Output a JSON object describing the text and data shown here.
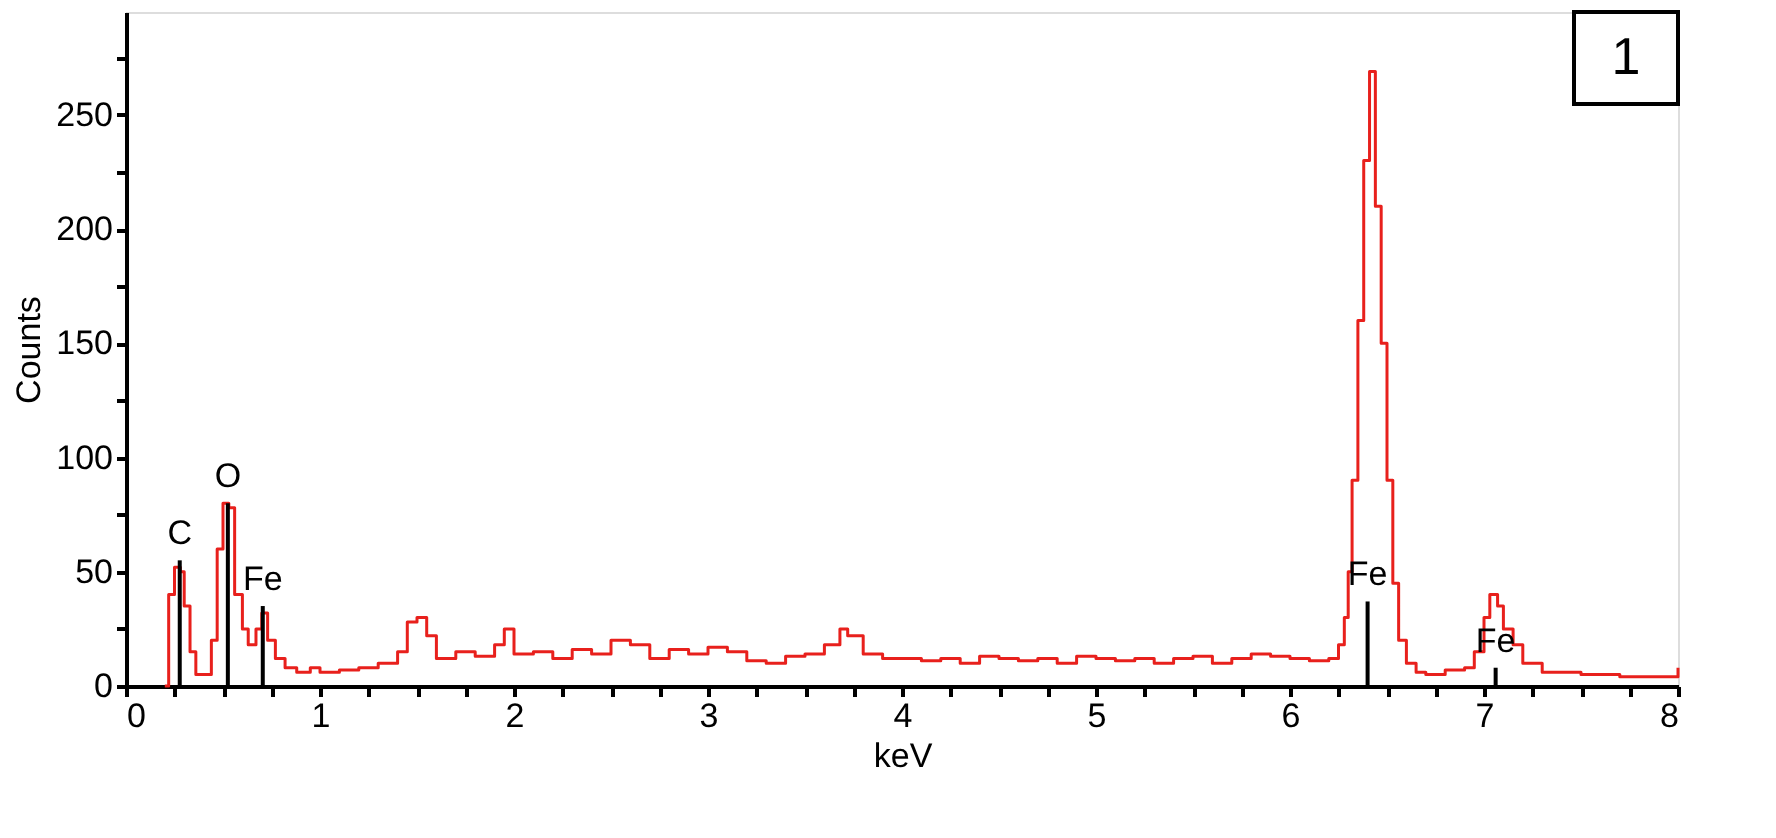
{
  "chart_data": {
    "type": "step",
    "xlabel": "keV",
    "ylabel": "Counts",
    "xlim": [
      0,
      8
    ],
    "xticks": [
      0,
      {
        "value": 0.25,
        "label": null
      },
      {
        "value": 0.5,
        "label": null
      },
      {
        "value": 0.75,
        "label": null
      },
      1,
      {
        "value": 1.25,
        "label": null
      },
      {
        "value": 1.5,
        "label": null
      },
      {
        "value": 1.75,
        "label": null
      },
      2,
      {
        "value": 2.25,
        "label": null
      },
      {
        "value": 2.5,
        "label": null
      },
      {
        "value": 2.75,
        "label": null
      },
      3,
      {
        "value": 3.25,
        "label": null
      },
      {
        "value": 3.5,
        "label": null
      },
      {
        "value": 3.75,
        "label": null
      },
      4,
      {
        "value": 4.25,
        "label": null
      },
      {
        "value": 4.5,
        "label": null
      },
      {
        "value": 4.75,
        "label": null
      },
      5,
      {
        "value": 5.25,
        "label": null
      },
      {
        "value": 5.5,
        "label": null
      },
      {
        "value": 5.75,
        "label": null
      },
      6,
      {
        "value": 6.25,
        "label": null
      },
      {
        "value": 6.5,
        "label": null
      },
      {
        "value": 6.75,
        "label": null
      },
      7,
      {
        "value": 7.25,
        "label": null
      },
      {
        "value": 7.5,
        "label": null
      },
      {
        "value": 7.75,
        "label": null
      },
      8
    ],
    "ylim": [
      0,
      295
    ],
    "yticks": [
      0,
      {
        "value": 25,
        "label": null
      },
      50,
      {
        "value": 75,
        "label": null
      },
      100,
      {
        "value": 125,
        "label": null
      },
      150,
      {
        "value": 175,
        "label": null
      },
      200,
      {
        "value": 225,
        "label": null
      },
      250,
      {
        "value": 275,
        "label": null
      }
    ],
    "grid": false,
    "series": [
      {
        "color": "#e8201c",
        "x": [
          0.2,
          0.22,
          0.25,
          0.28,
          0.3,
          0.33,
          0.36,
          0.4,
          0.44,
          0.47,
          0.5,
          0.53,
          0.56,
          0.6,
          0.63,
          0.67,
          0.7,
          0.73,
          0.77,
          0.82,
          0.88,
          0.95,
          1.0,
          1.1,
          1.2,
          1.3,
          1.4,
          1.45,
          1.5,
          1.55,
          1.6,
          1.7,
          1.8,
          1.9,
          1.95,
          2.0,
          2.1,
          2.2,
          2.3,
          2.4,
          2.5,
          2.6,
          2.7,
          2.8,
          2.9,
          3.0,
          3.1,
          3.2,
          3.3,
          3.4,
          3.5,
          3.6,
          3.68,
          3.72,
          3.8,
          3.9,
          4.0,
          4.1,
          4.2,
          4.3,
          4.4,
          4.5,
          4.6,
          4.7,
          4.8,
          4.9,
          5.0,
          5.1,
          5.2,
          5.3,
          5.4,
          5.5,
          5.6,
          5.7,
          5.8,
          5.9,
          6.0,
          6.1,
          6.2,
          6.25,
          6.28,
          6.3,
          6.32,
          6.35,
          6.38,
          6.41,
          6.44,
          6.47,
          6.5,
          6.53,
          6.56,
          6.6,
          6.65,
          6.7,
          6.8,
          6.9,
          6.95,
          7.0,
          7.03,
          7.07,
          7.1,
          7.15,
          7.2,
          7.3,
          7.5,
          7.7,
          7.9,
          8.0
        ],
        "values": [
          0,
          40,
          52,
          50,
          35,
          15,
          5,
          5,
          20,
          60,
          80,
          78,
          40,
          25,
          18,
          25,
          32,
          20,
          12,
          8,
          6,
          8,
          6,
          7,
          8,
          10,
          15,
          28,
          30,
          22,
          12,
          15,
          13,
          18,
          25,
          14,
          15,
          12,
          16,
          14,
          20,
          18,
          12,
          16,
          14,
          17,
          15,
          11,
          10,
          13,
          14,
          18,
          25,
          22,
          14,
          12,
          12,
          11,
          12,
          10,
          13,
          12,
          11,
          12,
          10,
          13,
          12,
          11,
          12,
          10,
          12,
          13,
          10,
          12,
          14,
          13,
          12,
          11,
          12,
          18,
          30,
          50,
          90,
          160,
          230,
          269,
          210,
          150,
          90,
          45,
          20,
          10,
          6,
          5,
          7,
          8,
          15,
          30,
          40,
          35,
          25,
          18,
          10,
          6,
          5,
          4,
          4,
          8
        ]
      },
      {
        "type": "bar",
        "color": "#000000",
        "x": [
          0.277,
          0.525,
          0.705,
          6.4,
          7.06
        ],
        "values": [
          55,
          80,
          35,
          37,
          8
        ]
      }
    ],
    "annotations": [
      {
        "text": "C",
        "x": 0.277,
        "y": 55
      },
      {
        "text": "O",
        "x": 0.525,
        "y": 80
      },
      {
        "text": "Fe",
        "x": 0.705,
        "y": 35
      },
      {
        "text": "Fe",
        "x": 6.4,
        "y": 37
      },
      {
        "text": "Fe",
        "x": 7.06,
        "y": 8
      },
      "1"
    ]
  }
}
